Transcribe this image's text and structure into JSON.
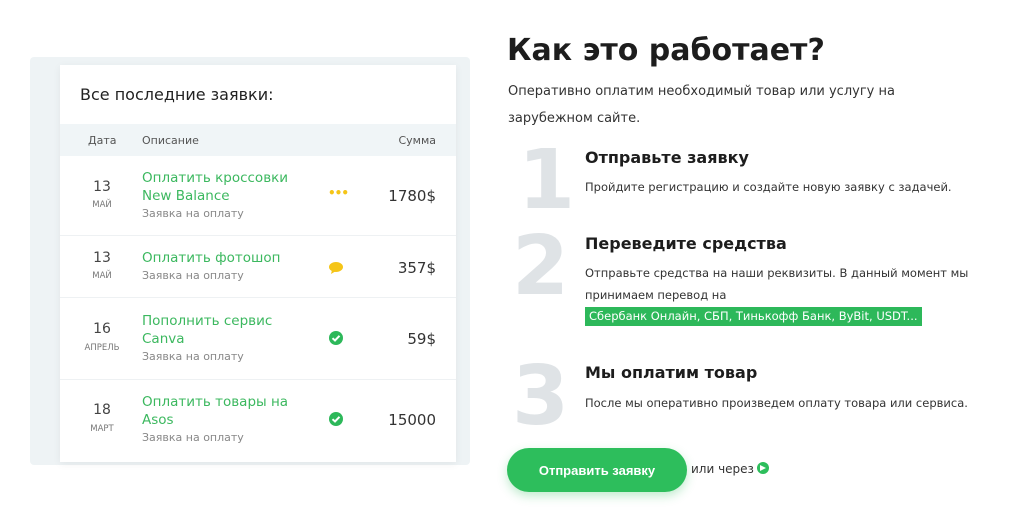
{
  "card": {
    "title": "Все последние заявки:",
    "headers": {
      "date": "Дата",
      "description": "Описание",
      "amount": "Сумма"
    },
    "rows": [
      {
        "day": "13",
        "month": "май",
        "title": "Оплатить кроссовки New Balance",
        "subtitle": "Заявка на оплату",
        "status": "pending-dots-icon",
        "amount": "1780$"
      },
      {
        "day": "13",
        "month": "май",
        "title": "Оплатить фотошоп",
        "subtitle": "Заявка на оплату",
        "status": "chat-bubble-icon",
        "amount": "357$"
      },
      {
        "day": "16",
        "month": "апрель",
        "title": "Пополнить сервис Canva",
        "subtitle": "Заявка на оплату",
        "status": "check-circle-icon",
        "amount": "59$"
      },
      {
        "day": "18",
        "month": "март",
        "title": "Оплатить товары на Asos",
        "subtitle": "Заявка на оплату",
        "status": "check-circle-icon",
        "amount": "15000"
      }
    ]
  },
  "how": {
    "title": "Как это работает?",
    "lead": "Оперативно оплатим необходимый товар или услугу на зарубежном сайте.",
    "steps": [
      {
        "num": "1",
        "title": "Отправьте заявку",
        "text": "Пройдите регистрацию и создайте новую заявку с задачей."
      },
      {
        "num": "2",
        "title": "Переведите средства",
        "text": "Отправьте средства на наши реквизиты. В данный момент мы принимаем перевод на",
        "highlight": "Сбербанк Онлайн, СБП, Тинькофф Банк, ByBit, USDT..."
      },
      {
        "num": "3",
        "title": "Мы оплатим товар",
        "text": "После мы оперативно произведем оплату товара или сервиса."
      }
    ],
    "button": "Отправить заявку",
    "via": "или через"
  },
  "colors": {
    "accent": "#2dbe5c",
    "pending": "#f5c518"
  }
}
